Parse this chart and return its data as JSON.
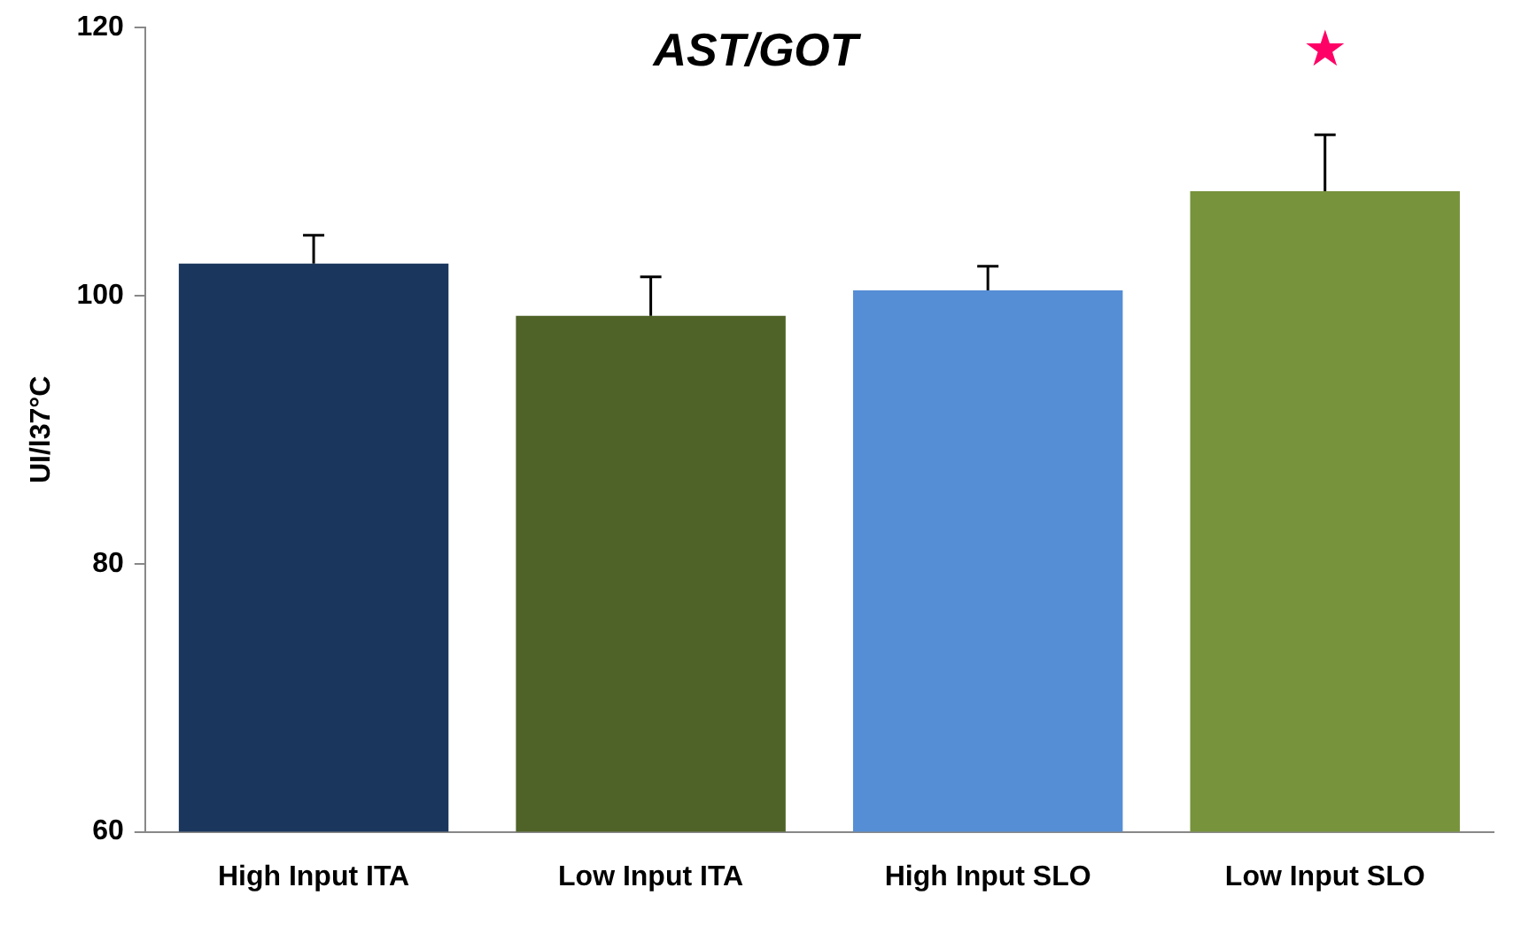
{
  "chart_data": {
    "type": "bar",
    "title": "AST/GOT",
    "ylabel": "UI/l37°C",
    "categories": [
      "High Input ITA",
      "Low Input ITA",
      "High Input SLO",
      "Low Input SLO"
    ],
    "values": [
      102.4,
      98.5,
      100.4,
      107.8
    ],
    "colors": [
      "#1b365d",
      "#4f6228",
      "#558ed5",
      "#77933c"
    ],
    "errors": [
      [
        102.4,
        104.5
      ],
      [
        98.5,
        101.4
      ],
      [
        100.4,
        102.2
      ],
      [
        107.8,
        112.0
      ]
    ],
    "ylim": [
      60,
      120
    ],
    "yticks": [
      60,
      80,
      100,
      120
    ],
    "grid": false,
    "legend": false,
    "annotations": [
      "★"
    ]
  }
}
